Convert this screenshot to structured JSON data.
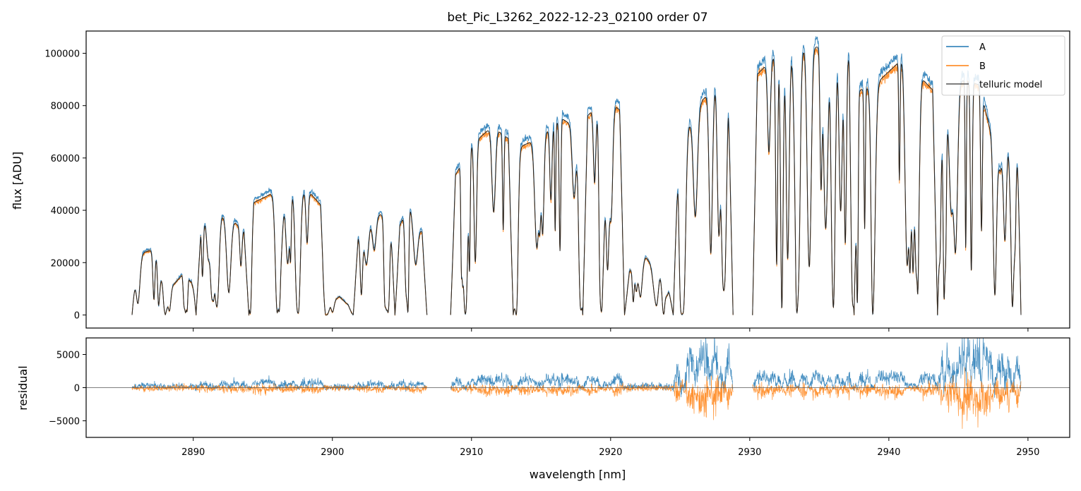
{
  "chart_data": [
    {
      "type": "line",
      "title": "bet_Pic_L3262_2022-12-23_02100  order 07",
      "xlabel": "",
      "ylabel": "flux [ADU]",
      "xlim": [
        2882.3,
        2953.0
      ],
      "ylim": [
        -5000,
        108500
      ],
      "yticks": [
        0,
        20000,
        40000,
        60000,
        80000,
        100000
      ],
      "xticks": [
        2890,
        2900,
        2910,
        2920,
        2930,
        2940,
        2950
      ],
      "legend": {
        "placement": "top-right",
        "entries": [
          "A",
          "B",
          "telluric model"
        ]
      },
      "colors": {
        "A": "#1f77b4",
        "B": "#ff7f0e",
        "telluric model": "#222222"
      },
      "continuum_segments": [
        {
          "x": [
            2885.6,
            2888.0
          ],
          "levels": [
            [
              2885.6,
              22000
            ],
            [
              2886.5,
              24000
            ],
            [
              2888.0,
              26000
            ]
          ],
          "envelope": "3000*sin"
        },
        {
          "x": [
            2888.0,
            2890.2
          ],
          "levels": [
            [
              2888.0,
              8000
            ],
            [
              2889.0,
              14000
            ],
            [
              2890.2,
              22000
            ]
          ]
        },
        {
          "x": [
            2890.2,
            2894.0
          ],
          "levels": [
            [
              2890.2,
              30000
            ],
            [
              2891.0,
              37000
            ],
            [
              2892.5,
              38000
            ],
            [
              2894.0,
              30000
            ]
          ]
        },
        {
          "x": [
            2894.0,
            2899.5
          ],
          "levels": [
            [
              2894.0,
              42000
            ],
            [
              2895.5,
              46000
            ],
            [
              2897.0,
              48000
            ],
            [
              2898.5,
              46000
            ],
            [
              2899.5,
              40000
            ]
          ]
        },
        {
          "x": [
            2899.5,
            2901.5
          ],
          "levels": [
            [
              2899.5,
              3000
            ],
            [
              2900.5,
              7000
            ],
            [
              2901.5,
              2000
            ]
          ]
        },
        {
          "x": [
            2901.5,
            2904.5
          ],
          "levels": [
            [
              2901.5,
              27000
            ],
            [
              2903.0,
              38000
            ],
            [
              2904.5,
              39000
            ]
          ]
        },
        {
          "x": [
            2904.5,
            2906.8
          ],
          "levels": [
            [
              2904.5,
              30000
            ],
            [
              2905.5,
              42000
            ],
            [
              2906.8,
              28000
            ]
          ]
        },
        {
          "x": [
            2908.5,
            2913.0
          ],
          "levels": [
            [
              2908.5,
              50000
            ],
            [
              2910.0,
              65000
            ],
            [
              2911.5,
              72000
            ],
            [
              2913.0,
              66000
            ]
          ]
        },
        {
          "x": [
            2913.0,
            2918.0
          ],
          "levels": [
            [
              2913.0,
              63000
            ],
            [
              2915.0,
              68000
            ],
            [
              2916.5,
              75000
            ],
            [
              2918.0,
              70000
            ]
          ]
        },
        {
          "x": [
            2918.0,
            2921.0
          ],
          "levels": [
            [
              2918.0,
              74000
            ],
            [
              2919.5,
              83000
            ],
            [
              2921.0,
              77000
            ]
          ]
        },
        {
          "x": [
            2921.0,
            2924.5
          ],
          "levels": [
            [
              2921.0,
              15000
            ],
            [
              2922.5,
              22000
            ],
            [
              2924.5,
              10000
            ]
          ]
        },
        {
          "x": [
            2924.5,
            2928.8
          ],
          "levels": [
            [
              2924.5,
              55000
            ],
            [
              2926.0,
              78000
            ],
            [
              2927.5,
              88000
            ],
            [
              2928.8,
              88000
            ]
          ]
        },
        {
          "x": [
            2930.2,
            2937.5
          ],
          "levels": [
            [
              2930.2,
              90000
            ],
            [
              2932.0,
              100000
            ],
            [
              2934.0,
              102000
            ],
            [
              2936.0,
              103000
            ],
            [
              2937.5,
              98000
            ]
          ]
        },
        {
          "x": [
            2937.5,
            2943.5
          ],
          "levels": [
            [
              2937.5,
              85000
            ],
            [
              2939.0,
              88000
            ],
            [
              2941.0,
              98000
            ],
            [
              2943.5,
              84000
            ]
          ]
        },
        {
          "x": [
            2943.5,
            2949.5
          ],
          "levels": [
            [
              2943.5,
              65000
            ],
            [
              2945.0,
              90000
            ],
            [
              2946.5,
              88000
            ],
            [
              2948.0,
              55000
            ],
            [
              2949.5,
              92000
            ]
          ]
        }
      ]
    },
    {
      "type": "line",
      "title": "",
      "xlabel": "wavelength [nm]",
      "ylabel": "residual",
      "xlim": [
        2882.3,
        2953.0
      ],
      "ylim": [
        -7500,
        7500
      ],
      "yticks": [
        -5000,
        0,
        5000
      ],
      "xticks": [
        2890,
        2900,
        2910,
        2920,
        2930,
        2940,
        2950
      ],
      "zero_line": true
    }
  ],
  "labels": {
    "xticklabels": [
      "2890",
      "2900",
      "2910",
      "2920",
      "2930",
      "2940",
      "2950"
    ],
    "yticklabels_top": [
      "0",
      "20000",
      "40000",
      "60000",
      "80000",
      "100000"
    ],
    "yticklabels_bottom": [
      "−5000",
      "0",
      "5000"
    ]
  }
}
